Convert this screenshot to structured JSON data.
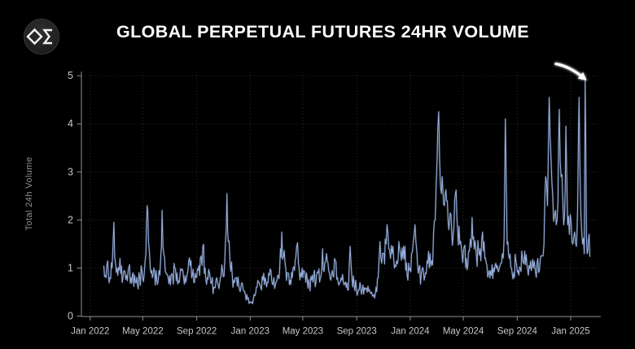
{
  "header": {
    "title": "GLOBAL PERPETUAL FUTURES 24HR VOLUME",
    "logo_icon": "diamond-sigma-icon"
  },
  "colors": {
    "background": "#000000",
    "title": "#ffffff",
    "axis": "#8f8f8f",
    "tick_label": "#c7c7c7",
    "axis_title": "#8f8f8f",
    "line": "#97b0e0",
    "grid": "rgba(255,255,255,0.16)",
    "annotation_arrow": "#ffffff"
  },
  "chart_data": {
    "type": "line",
    "title": "GLOBAL PERPETUAL FUTURES 24HR VOLUME",
    "xlabel": "",
    "ylabel": "Total 24h Volume",
    "ylim": [
      0,
      5
    ],
    "xlim": [
      "2021-12-12",
      "2025-03-06"
    ],
    "grid": "dotted",
    "legend": false,
    "y_ticks": [
      0,
      1,
      2,
      3,
      4,
      5
    ],
    "x_ticks": [
      [
        "2022-01-01",
        "Jan 2022"
      ],
      [
        "2022-05-01",
        "May 2022"
      ],
      [
        "2022-09-01",
        "Sep 2022"
      ],
      [
        "2023-01-01",
        "Jan 2023"
      ],
      [
        "2023-05-01",
        "May 2023"
      ],
      [
        "2023-09-01",
        "Sep 2023"
      ],
      [
        "2024-01-01",
        "Jan 2024"
      ],
      [
        "2024-05-01",
        "May 2024"
      ],
      [
        "2024-09-01",
        "Sep 2024"
      ],
      [
        "2025-01-01",
        "Jan 2025"
      ]
    ],
    "series": [
      {
        "name": "Global perpetual futures 24h volume",
        "color": "#97b0e0",
        "points": [
          [
            "2022-02-01",
            1.05
          ],
          [
            "2022-02-06",
            0.8
          ],
          [
            "2022-02-10",
            1.15
          ],
          [
            "2022-02-15",
            0.8
          ],
          [
            "2022-02-20",
            1.0
          ],
          [
            "2022-02-24",
            1.95
          ],
          [
            "2022-02-28",
            1.1
          ],
          [
            "2022-03-05",
            0.85
          ],
          [
            "2022-03-10",
            1.2
          ],
          [
            "2022-03-15",
            0.7
          ],
          [
            "2022-03-20",
            0.95
          ],
          [
            "2022-03-25",
            0.85
          ],
          [
            "2022-03-30",
            1.0
          ],
          [
            "2022-04-04",
            0.8
          ],
          [
            "2022-04-09",
            0.9
          ],
          [
            "2022-04-14",
            0.7
          ],
          [
            "2022-04-19",
            0.65
          ],
          [
            "2022-04-24",
            0.8
          ],
          [
            "2022-04-29",
            0.95
          ],
          [
            "2022-05-04",
            0.85
          ],
          [
            "2022-05-08",
            1.3
          ],
          [
            "2022-05-11",
            2.3
          ],
          [
            "2022-05-14",
            1.55
          ],
          [
            "2022-05-18",
            1.0
          ],
          [
            "2022-05-23",
            0.8
          ],
          [
            "2022-05-28",
            0.9
          ],
          [
            "2022-06-02",
            0.75
          ],
          [
            "2022-06-07",
            0.95
          ],
          [
            "2022-06-11",
            1.25
          ],
          [
            "2022-06-14",
            2.2
          ],
          [
            "2022-06-18",
            1.3
          ],
          [
            "2022-06-23",
            0.9
          ],
          [
            "2022-06-28",
            0.8
          ],
          [
            "2022-07-03",
            0.65
          ],
          [
            "2022-07-08",
            0.85
          ],
          [
            "2022-07-13",
            1.0
          ],
          [
            "2022-07-18",
            0.9
          ],
          [
            "2022-07-23",
            0.7
          ],
          [
            "2022-07-28",
            0.95
          ],
          [
            "2022-08-02",
            0.8
          ],
          [
            "2022-08-07",
            0.7
          ],
          [
            "2022-08-12",
            0.95
          ],
          [
            "2022-08-17",
            1.05
          ],
          [
            "2022-08-22",
            0.85
          ],
          [
            "2022-08-27",
            0.7
          ],
          [
            "2022-09-01",
            0.8
          ],
          [
            "2022-09-06",
            1.05
          ],
          [
            "2022-09-11",
            1.25
          ],
          [
            "2022-09-15",
            1.45
          ],
          [
            "2022-09-20",
            1.0
          ],
          [
            "2022-09-25",
            0.8
          ],
          [
            "2022-09-30",
            0.9
          ],
          [
            "2022-10-05",
            0.7
          ],
          [
            "2022-10-10",
            0.6
          ],
          [
            "2022-10-15",
            0.75
          ],
          [
            "2022-10-20",
            0.65
          ],
          [
            "2022-10-25",
            0.8
          ],
          [
            "2022-10-30",
            0.95
          ],
          [
            "2022-11-04",
            1.15
          ],
          [
            "2022-11-09",
            2.55
          ],
          [
            "2022-11-12",
            1.55
          ],
          [
            "2022-11-16",
            1.1
          ],
          [
            "2022-11-21",
            0.85
          ],
          [
            "2022-11-26",
            0.7
          ],
          [
            "2022-12-01",
            0.8
          ],
          [
            "2022-12-06",
            0.65
          ],
          [
            "2022-12-11",
            0.6
          ],
          [
            "2022-12-16",
            0.55
          ],
          [
            "2022-12-21",
            0.45
          ],
          [
            "2022-12-26",
            0.35
          ],
          [
            "2022-12-31",
            0.3
          ],
          [
            "2023-01-05",
            0.3
          ],
          [
            "2023-01-10",
            0.45
          ],
          [
            "2023-01-15",
            0.6
          ],
          [
            "2023-01-20",
            0.7
          ],
          [
            "2023-01-25",
            0.6
          ],
          [
            "2023-01-30",
            0.75
          ],
          [
            "2023-02-04",
            0.8
          ],
          [
            "2023-02-09",
            0.7
          ],
          [
            "2023-02-14",
            0.85
          ],
          [
            "2023-02-19",
            0.75
          ],
          [
            "2023-02-24",
            0.8
          ],
          [
            "2023-03-01",
            0.7
          ],
          [
            "2023-03-06",
            0.85
          ],
          [
            "2023-03-11",
            1.4
          ],
          [
            "2023-03-14",
            1.75
          ],
          [
            "2023-03-18",
            1.25
          ],
          [
            "2023-03-23",
            1.0
          ],
          [
            "2023-03-28",
            0.9
          ],
          [
            "2023-04-02",
            0.75
          ],
          [
            "2023-04-07",
            0.8
          ],
          [
            "2023-04-12",
            0.95
          ],
          [
            "2023-04-17",
            1.45
          ],
          [
            "2023-04-21",
            1.1
          ],
          [
            "2023-04-26",
            0.9
          ],
          [
            "2023-05-01",
            0.8
          ],
          [
            "2023-05-06",
            0.9
          ],
          [
            "2023-05-11",
            0.75
          ],
          [
            "2023-05-16",
            0.65
          ],
          [
            "2023-05-21",
            0.75
          ],
          [
            "2023-05-26",
            0.85
          ],
          [
            "2023-05-31",
            0.7
          ],
          [
            "2023-06-05",
            0.9
          ],
          [
            "2023-06-10",
            0.8
          ],
          [
            "2023-06-15",
            1.4
          ],
          [
            "2023-06-20",
            1.1
          ],
          [
            "2023-06-24",
            1.3
          ],
          [
            "2023-06-29",
            0.95
          ],
          [
            "2023-07-04",
            0.75
          ],
          [
            "2023-07-09",
            0.85
          ],
          [
            "2023-07-14",
            1.15
          ],
          [
            "2023-07-19",
            0.8
          ],
          [
            "2023-07-24",
            0.7
          ],
          [
            "2023-07-29",
            0.75
          ],
          [
            "2023-08-03",
            0.65
          ],
          [
            "2023-08-08",
            0.6
          ],
          [
            "2023-08-13",
            0.55
          ],
          [
            "2023-08-17",
            1.45
          ],
          [
            "2023-08-21",
            0.8
          ],
          [
            "2023-08-26",
            0.65
          ],
          [
            "2023-08-31",
            0.6
          ],
          [
            "2023-09-05",
            0.55
          ],
          [
            "2023-09-10",
            0.6
          ],
          [
            "2023-09-15",
            0.65
          ],
          [
            "2023-09-20",
            0.55
          ],
          [
            "2023-09-25",
            0.5
          ],
          [
            "2023-09-30",
            0.55
          ],
          [
            "2023-10-05",
            0.5
          ],
          [
            "2023-10-10",
            0.45
          ],
          [
            "2023-10-15",
            0.6
          ],
          [
            "2023-10-20",
            0.8
          ],
          [
            "2023-10-24",
            1.55
          ],
          [
            "2023-10-28",
            1.1
          ],
          [
            "2023-11-02",
            1.3
          ],
          [
            "2023-11-05",
            1.6
          ],
          [
            "2023-11-09",
            1.9
          ],
          [
            "2023-11-13",
            1.4
          ],
          [
            "2023-11-17",
            1.2
          ],
          [
            "2023-11-21",
            1.3
          ],
          [
            "2023-11-26",
            1.0
          ],
          [
            "2023-12-01",
            1.15
          ],
          [
            "2023-12-06",
            1.55
          ],
          [
            "2023-12-10",
            1.3
          ],
          [
            "2023-12-15",
            1.2
          ],
          [
            "2023-12-20",
            1.45
          ],
          [
            "2023-12-25",
            0.85
          ],
          [
            "2023-12-30",
            0.95
          ],
          [
            "2024-01-04",
            1.3
          ],
          [
            "2024-01-08",
            1.55
          ],
          [
            "2024-01-12",
            1.9
          ],
          [
            "2024-01-16",
            1.35
          ],
          [
            "2024-01-21",
            1.0
          ],
          [
            "2024-01-26",
            0.85
          ],
          [
            "2024-01-31",
            0.95
          ],
          [
            "2024-02-05",
            0.9
          ],
          [
            "2024-02-10",
            1.1
          ],
          [
            "2024-02-15",
            1.3
          ],
          [
            "2024-02-19",
            1.15
          ],
          [
            "2024-02-23",
            1.7
          ],
          [
            "2024-02-27",
            2.0
          ],
          [
            "2024-03-02",
            3.2
          ],
          [
            "2024-03-06",
            4.25
          ],
          [
            "2024-03-10",
            2.7
          ],
          [
            "2024-03-14",
            2.9
          ],
          [
            "2024-03-19",
            2.3
          ],
          [
            "2024-03-24",
            2.4
          ],
          [
            "2024-03-29",
            1.8
          ],
          [
            "2024-04-03",
            2.1
          ],
          [
            "2024-04-08",
            1.7
          ],
          [
            "2024-04-13",
            2.55
          ],
          [
            "2024-04-18",
            1.8
          ],
          [
            "2024-04-23",
            1.5
          ],
          [
            "2024-04-28",
            1.3
          ],
          [
            "2024-05-03",
            1.45
          ],
          [
            "2024-05-08",
            1.2
          ],
          [
            "2024-05-13",
            1.35
          ],
          [
            "2024-05-17",
            1.6
          ],
          [
            "2024-05-21",
            2.05
          ],
          [
            "2024-05-26",
            1.4
          ],
          [
            "2024-05-31",
            1.25
          ],
          [
            "2024-06-05",
            1.35
          ],
          [
            "2024-06-10",
            1.15
          ],
          [
            "2024-06-14",
            1.75
          ],
          [
            "2024-06-19",
            1.2
          ],
          [
            "2024-06-24",
            1.05
          ],
          [
            "2024-06-29",
            0.95
          ],
          [
            "2024-07-04",
            0.85
          ],
          [
            "2024-07-09",
            1.0
          ],
          [
            "2024-07-14",
            1.1
          ],
          [
            "2024-07-19",
            0.95
          ],
          [
            "2024-07-24",
            1.05
          ],
          [
            "2024-07-29",
            1.3
          ],
          [
            "2024-08-02",
            1.6
          ],
          [
            "2024-08-05",
            4.1
          ],
          [
            "2024-08-09",
            1.5
          ],
          [
            "2024-08-14",
            1.2
          ],
          [
            "2024-08-19",
            1.0
          ],
          [
            "2024-08-24",
            0.9
          ],
          [
            "2024-08-29",
            1.15
          ],
          [
            "2024-09-03",
            0.95
          ],
          [
            "2024-09-08",
            1.0
          ],
          [
            "2024-09-13",
            1.2
          ],
          [
            "2024-09-18",
            1.35
          ],
          [
            "2024-09-23",
            1.1
          ],
          [
            "2024-09-28",
            1.05
          ],
          [
            "2024-10-03",
            0.95
          ],
          [
            "2024-10-08",
            1.0
          ],
          [
            "2024-10-13",
            0.9
          ],
          [
            "2024-10-18",
            1.2
          ],
          [
            "2024-10-23",
            1.1
          ],
          [
            "2024-10-28",
            1.25
          ],
          [
            "2024-11-01",
            1.5
          ],
          [
            "2024-11-05",
            2.9
          ],
          [
            "2024-11-09",
            2.3
          ],
          [
            "2024-11-13",
            4.55
          ],
          [
            "2024-11-17",
            3.3
          ],
          [
            "2024-11-21",
            2.5
          ],
          [
            "2024-11-25",
            2.1
          ],
          [
            "2024-11-29",
            1.9
          ],
          [
            "2024-12-03",
            2.4
          ],
          [
            "2024-12-06",
            4.3
          ],
          [
            "2024-12-10",
            2.9
          ],
          [
            "2024-12-14",
            2.4
          ],
          [
            "2024-12-18",
            2.1
          ],
          [
            "2024-12-21",
            3.95
          ],
          [
            "2024-12-25",
            1.9
          ],
          [
            "2024-12-29",
            1.7
          ],
          [
            "2025-01-02",
            1.95
          ],
          [
            "2025-01-06",
            1.5
          ],
          [
            "2025-01-10",
            1.75
          ],
          [
            "2025-01-14",
            1.45
          ],
          [
            "2025-01-17",
            2.3
          ],
          [
            "2025-01-20",
            4.55
          ],
          [
            "2025-01-24",
            2.2
          ],
          [
            "2025-01-28",
            1.5
          ],
          [
            "2025-02-01",
            1.3
          ],
          [
            "2025-02-03",
            4.9
          ],
          [
            "2025-02-06",
            1.6
          ],
          [
            "2025-02-09",
            1.35
          ],
          [
            "2025-02-12",
            1.7
          ],
          [
            "2025-02-15",
            1.25
          ]
        ]
      }
    ],
    "annotations": [
      {
        "type": "arrow",
        "color": "#ffffff",
        "points_to": {
          "date": "2025-02-03",
          "value": 4.9
        }
      }
    ],
    "render_hints": {
      "daily_jitter": 0.24,
      "seed": 13,
      "min_value": 0.12,
      "legend_position": "none"
    }
  }
}
